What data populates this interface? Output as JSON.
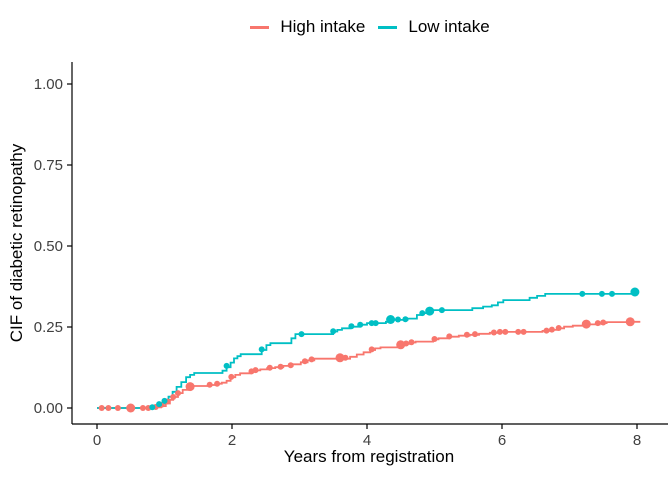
{
  "chart_data": {
    "type": "line",
    "subtype": "step-cumulative-incidence",
    "title": "",
    "xlabel": "Years from registration",
    "ylabel": "CIF of diabetic retinopathy",
    "xlim": [
      -0.37,
      8.46
    ],
    "ylim": [
      -0.0494,
      1.0679
    ],
    "x_ticks": {
      "values": [
        0,
        2,
        4,
        6,
        8
      ],
      "labels": [
        "0",
        "2",
        "4",
        "6",
        "8"
      ]
    },
    "y_ticks": {
      "values": [
        0,
        0.25,
        0.5,
        0.75,
        1.0
      ],
      "labels": [
        "0.00",
        "0.25",
        "0.50",
        "0.75",
        "1.00"
      ]
    },
    "grid": "off",
    "legend_position": "top-center",
    "axis_color": "#000000",
    "tick_label_color": "#404040",
    "series": [
      {
        "name": "High intake",
        "color": "#F8766D",
        "end": 8.05,
        "steps": [
          [
            0,
            0
          ],
          [
            0.8,
            0.002
          ],
          [
            0.95,
            0.006
          ],
          [
            1.02,
            0.014
          ],
          [
            1.08,
            0.025
          ],
          [
            1.13,
            0.034
          ],
          [
            1.2,
            0.046
          ],
          [
            1.27,
            0.056
          ],
          [
            1.35,
            0.065
          ],
          [
            1.4,
            0.068
          ],
          [
            1.67,
            0.071
          ],
          [
            1.78,
            0.075
          ],
          [
            1.85,
            0.078
          ],
          [
            1.92,
            0.084
          ],
          [
            1.98,
            0.095
          ],
          [
            2.05,
            0.102
          ],
          [
            2.12,
            0.107
          ],
          [
            2.28,
            0.112
          ],
          [
            2.34,
            0.116
          ],
          [
            2.42,
            0.119
          ],
          [
            2.52,
            0.123
          ],
          [
            2.64,
            0.126
          ],
          [
            2.76,
            0.13
          ],
          [
            2.9,
            0.135
          ],
          [
            3.02,
            0.141
          ],
          [
            3.12,
            0.147
          ],
          [
            3.22,
            0.152
          ],
          [
            3.75,
            0.158
          ],
          [
            3.85,
            0.165
          ],
          [
            3.95,
            0.172
          ],
          [
            4.05,
            0.179
          ],
          [
            4.12,
            0.184
          ],
          [
            4.2,
            0.187
          ],
          [
            4.48,
            0.194
          ],
          [
            4.56,
            0.198
          ],
          [
            4.64,
            0.202
          ],
          [
            4.72,
            0.205
          ],
          [
            4.98,
            0.212
          ],
          [
            5.06,
            0.215
          ],
          [
            5.22,
            0.22
          ],
          [
            5.36,
            0.223
          ],
          [
            5.52,
            0.226
          ],
          [
            5.66,
            0.229
          ],
          [
            5.82,
            0.232
          ],
          [
            5.95,
            0.235
          ],
          [
            6.6,
            0.238
          ],
          [
            6.7,
            0.241
          ],
          [
            6.82,
            0.246
          ],
          [
            6.92,
            0.251
          ],
          [
            7.05,
            0.254
          ],
          [
            7.25,
            0.258
          ],
          [
            7.45,
            0.262
          ],
          [
            7.55,
            0.265
          ],
          [
            7.95,
            0.266
          ]
        ],
        "markers": [
          [
            0.07,
            0
          ],
          [
            0.17,
            0
          ],
          [
            0.31,
            0
          ],
          [
            0.5,
            0,
            4.5
          ],
          [
            0.68,
            0
          ],
          [
            0.76,
            0
          ],
          [
            0.87,
            0.003
          ],
          [
            0.96,
            0.01
          ],
          [
            1.04,
            0.02
          ],
          [
            1.13,
            0.034
          ],
          [
            1.2,
            0.046
          ],
          [
            1.38,
            0.066,
            4.5
          ],
          [
            1.67,
            0.072
          ],
          [
            1.78,
            0.075
          ],
          [
            1.99,
            0.096
          ],
          [
            2.29,
            0.113
          ],
          [
            2.35,
            0.117
          ],
          [
            2.56,
            0.124
          ],
          [
            2.72,
            0.127
          ],
          [
            2.87,
            0.132
          ],
          [
            3.08,
            0.144
          ],
          [
            3.18,
            0.15
          ],
          [
            3.6,
            0.155,
            4.5
          ],
          [
            3.68,
            0.155
          ],
          [
            4.07,
            0.181
          ],
          [
            4.5,
            0.195,
            4.5
          ],
          [
            4.58,
            0.199
          ],
          [
            4.66,
            0.203
          ],
          [
            5.0,
            0.213
          ],
          [
            5.22,
            0.221
          ],
          [
            5.48,
            0.226
          ],
          [
            5.6,
            0.228
          ],
          [
            5.88,
            0.233
          ],
          [
            5.97,
            0.235
          ],
          [
            6.05,
            0.235
          ],
          [
            6.24,
            0.235
          ],
          [
            6.32,
            0.235
          ],
          [
            6.66,
            0.239
          ],
          [
            6.74,
            0.242
          ],
          [
            6.84,
            0.247
          ],
          [
            7.25,
            0.259,
            4.5
          ],
          [
            7.42,
            0.262
          ],
          [
            7.5,
            0.264
          ],
          [
            7.9,
            0.266,
            4.5
          ]
        ]
      },
      {
        "name": "Low intake",
        "color": "#00BFC4",
        "end": 8.02,
        "steps": [
          [
            0,
            0
          ],
          [
            0.86,
            0.006
          ],
          [
            0.94,
            0.014
          ],
          [
            1.0,
            0.022
          ],
          [
            1.06,
            0.035
          ],
          [
            1.12,
            0.05
          ],
          [
            1.18,
            0.065
          ],
          [
            1.25,
            0.08
          ],
          [
            1.32,
            0.095
          ],
          [
            1.38,
            0.102
          ],
          [
            1.44,
            0.108
          ],
          [
            1.86,
            0.115
          ],
          [
            1.92,
            0.126
          ],
          [
            1.98,
            0.14
          ],
          [
            2.03,
            0.153
          ],
          [
            2.08,
            0.16
          ],
          [
            2.13,
            0.166
          ],
          [
            2.44,
            0.179
          ],
          [
            2.51,
            0.194
          ],
          [
            2.57,
            0.2
          ],
          [
            2.88,
            0.215
          ],
          [
            2.94,
            0.228
          ],
          [
            3.5,
            0.236
          ],
          [
            3.56,
            0.241
          ],
          [
            3.63,
            0.246
          ],
          [
            3.75,
            0.251
          ],
          [
            3.88,
            0.257
          ],
          [
            4.0,
            0.262
          ],
          [
            4.28,
            0.266
          ],
          [
            4.34,
            0.272
          ],
          [
            4.6,
            0.276
          ],
          [
            4.74,
            0.287
          ],
          [
            4.82,
            0.293
          ],
          [
            4.9,
            0.298
          ],
          [
            4.98,
            0.302
          ],
          [
            5.56,
            0.308
          ],
          [
            5.72,
            0.313
          ],
          [
            5.85,
            0.317
          ],
          [
            5.94,
            0.326
          ],
          [
            6.02,
            0.333
          ],
          [
            6.41,
            0.34
          ],
          [
            6.52,
            0.346
          ],
          [
            6.64,
            0.352
          ],
          [
            7.93,
            0.358
          ]
        ],
        "markers": [
          [
            0.82,
            0.002
          ],
          [
            0.92,
            0.012
          ],
          [
            1.0,
            0.022
          ],
          [
            1.92,
            0.13
          ],
          [
            2.44,
            0.181
          ],
          [
            3.03,
            0.228
          ],
          [
            3.5,
            0.237
          ],
          [
            3.77,
            0.252
          ],
          [
            3.9,
            0.257
          ],
          [
            4.07,
            0.262
          ],
          [
            4.13,
            0.262
          ],
          [
            4.35,
            0.273,
            4.5
          ],
          [
            4.46,
            0.273
          ],
          [
            4.57,
            0.274
          ],
          [
            4.82,
            0.293
          ],
          [
            4.93,
            0.299,
            4.5
          ],
          [
            5.11,
            0.302
          ],
          [
            7.19,
            0.352
          ],
          [
            7.48,
            0.352
          ],
          [
            7.63,
            0.352
          ],
          [
            7.97,
            0.358,
            4.5
          ]
        ]
      }
    ]
  }
}
